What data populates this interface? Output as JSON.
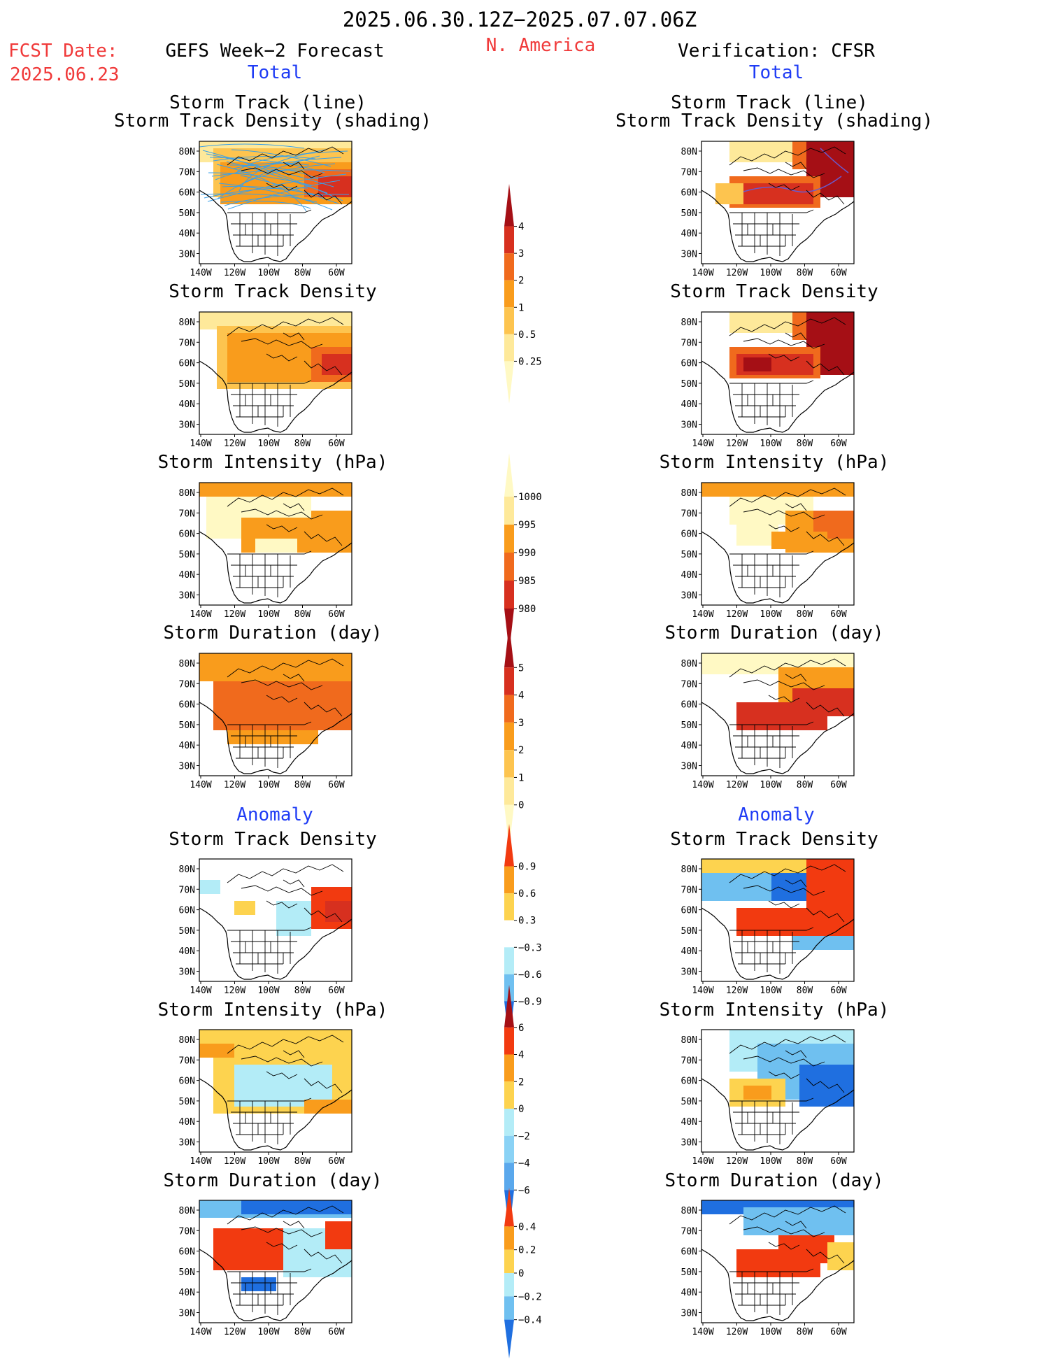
{
  "header": {
    "period": "2025.06.30.12Z−2025.07.07.06Z",
    "region": "N. America",
    "fcst_label": "FCST Date:",
    "fcst_date": "2025.06.23",
    "left_title": "GEFS Week−2 Forecast",
    "right_title": "Verification: CFSR",
    "total_label": "Total",
    "anomaly_label": "Anomaly"
  },
  "panel_titles": {
    "track_line": "Storm Track (line)",
    "track_shading": "Storm Track Density (shading)",
    "density": "Storm Track Density",
    "intensity": "Storm Intensity (hPa)",
    "duration": "Storm Duration (day)"
  },
  "axes": {
    "lat_ticks": [
      "80N",
      "70N",
      "60N",
      "50N",
      "40N",
      "30N"
    ],
    "lon_ticks": [
      "140W",
      "120W",
      "100W",
      "80W",
      "60W"
    ]
  },
  "colorbars": {
    "density_total": {
      "labels": [
        "4",
        "3",
        "2",
        "1",
        "0.5",
        "0.25"
      ],
      "colors": [
        "#a50f15",
        "#d7301f",
        "#f06a1d",
        "#f99c1c",
        "#fdc44f",
        "#fee99a",
        "#fff9c4"
      ]
    },
    "intensity_total": {
      "labels": [
        "1000",
        "995",
        "990",
        "985",
        "980"
      ],
      "colors": [
        "#fff9c4",
        "#fee99a",
        "#f99c1c",
        "#f06a1d",
        "#d7301f",
        "#a50f15"
      ]
    },
    "duration_total": {
      "labels": [
        "5",
        "4",
        "3",
        "2",
        "1",
        "0"
      ],
      "colors": [
        "#a50f15",
        "#d7301f",
        "#f06a1d",
        "#f99c1c",
        "#fdc44f",
        "#fee99a",
        "#fff9c4"
      ]
    },
    "density_anom": {
      "labels": [
        "0.9",
        "0.6",
        "0.3",
        "−0.3",
        "−0.6",
        "−0.9"
      ],
      "colors": [
        "#f23a10",
        "#f99c1c",
        "#fdd34f",
        "#ffffff",
        "#b3ecf7",
        "#6fc0f0",
        "#1f6fe0"
      ]
    },
    "intensity_anom": {
      "labels": [
        "6",
        "4",
        "2",
        "0",
        "−2",
        "−4",
        "−6"
      ],
      "colors": [
        "#a50f15",
        "#f23a10",
        "#f99c1c",
        "#fdd34f",
        "#b3ecf7",
        "#8ad2f5",
        "#5aa8ec",
        "#1f6fe0"
      ]
    },
    "duration_anom": {
      "labels": [
        "0.4",
        "0.2",
        "0",
        "−0.2",
        "−0.4"
      ],
      "colors": [
        "#f23a10",
        "#f99c1c",
        "#fdd34f",
        "#b3ecf7",
        "#6fc0f0",
        "#1f6fe0"
      ]
    }
  }
}
